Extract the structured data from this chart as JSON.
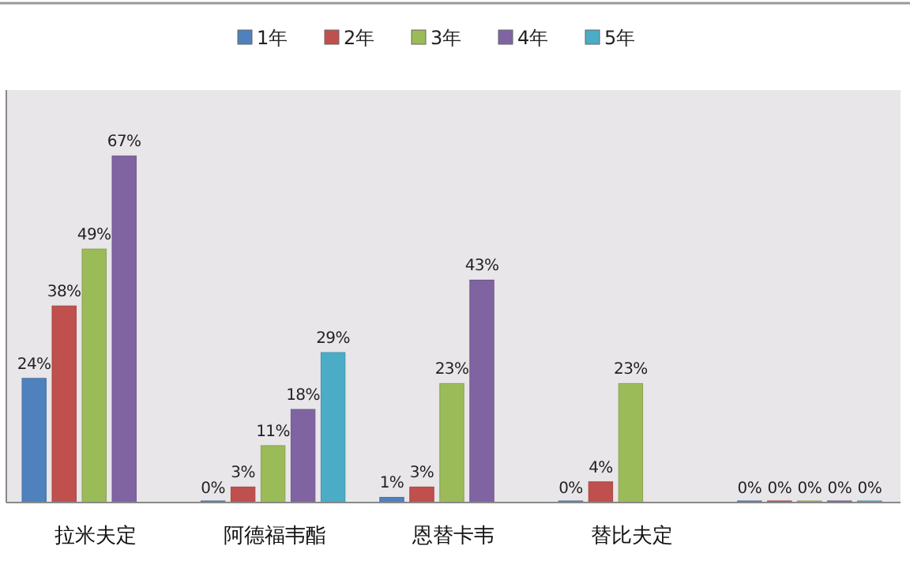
{
  "chart_data": {
    "type": "bar",
    "categories": [
      "拉米夫定",
      "阿德福韦酯",
      "恩替卡韦",
      "替比夫定",
      null
    ],
    "series": [
      {
        "name": "1年",
        "color": "#4f81bd",
        "values": [
          24,
          0,
          1,
          0,
          0
        ],
        "value_labels": [
          "24%",
          "0%",
          "1%",
          "0%",
          "0%"
        ]
      },
      {
        "name": "2年",
        "color": "#c0504d",
        "values": [
          38,
          3,
          3,
          4,
          0
        ],
        "value_labels": [
          "38%",
          "3%",
          "3%",
          "4%",
          "0%"
        ]
      },
      {
        "name": "3年",
        "color": "#9bbb59",
        "values": [
          49,
          11,
          23,
          23,
          0
        ],
        "value_labels": [
          "49%",
          "11%",
          "23%",
          "23%",
          "0%"
        ]
      },
      {
        "name": "4年",
        "color": "#8064a2",
        "values": [
          67,
          18,
          43,
          null,
          0
        ],
        "value_labels": [
          "67%",
          "18%",
          "43%",
          null,
          "0%"
        ]
      },
      {
        "name": "5年",
        "color": "#4bacc6",
        "values": [
          null,
          29,
          null,
          null,
          0
        ],
        "value_labels": [
          null,
          "29%",
          null,
          null,
          "0%"
        ]
      }
    ],
    "legend": "top"
  }
}
